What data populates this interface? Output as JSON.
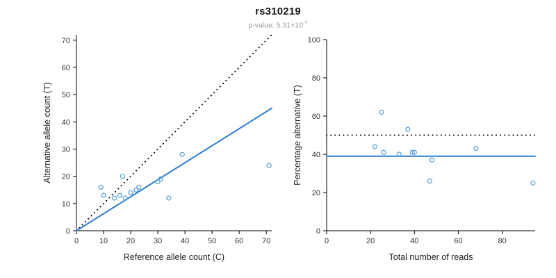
{
  "header": {
    "title": "rs310219",
    "pvalue_label": "p-value: 5.31×10",
    "pvalue_exponent": "-7"
  },
  "colors": {
    "accent_blue": "#2D7DD2",
    "point_blue": "#4F9BD5",
    "axis_black": "#000000",
    "subtitle_gray": "#9a9a9a"
  },
  "chart_data": [
    {
      "type": "scatter",
      "title": "",
      "xlabel": "Reference allele count (C)",
      "ylabel": "Alternative allele count (T)",
      "xlim": [
        0,
        72
      ],
      "ylim": [
        0,
        72
      ],
      "xticks": [
        0,
        10,
        20,
        30,
        40,
        50,
        60,
        70
      ],
      "yticks": [
        0,
        10,
        20,
        30,
        40,
        50,
        60,
        70
      ],
      "grid": false,
      "legend": "none",
      "point_color": "#4F9BD5",
      "points": [
        [
          9,
          16
        ],
        [
          10,
          13
        ],
        [
          14,
          12
        ],
        [
          16,
          13
        ],
        [
          17,
          20
        ],
        [
          18,
          12
        ],
        [
          20,
          14
        ],
        [
          22,
          15
        ],
        [
          23,
          16
        ],
        [
          30,
          18
        ],
        [
          31,
          19
        ],
        [
          34,
          12
        ],
        [
          39,
          28
        ],
        [
          71,
          24
        ]
      ],
      "lines": [
        {
          "name": "identity-line",
          "x1": 0,
          "y1": 0,
          "x2": 72,
          "y2": 72,
          "color": "#000000",
          "style": "dotted",
          "width": 2
        },
        {
          "name": "regression-line",
          "x1": 0,
          "y1": 0,
          "x2": 72,
          "y2": 45,
          "color": "#2D7DD2",
          "style": "solid",
          "width": 2
        }
      ]
    },
    {
      "type": "scatter",
      "title": "",
      "xlabel": "Total number of reads",
      "ylabel": "Percentage alternative (T)",
      "xlim": [
        0,
        95
      ],
      "ylim": [
        0,
        100
      ],
      "xticks": [
        0,
        20,
        40,
        60,
        80
      ],
      "yticks": [
        0,
        20,
        40,
        60,
        80,
        100
      ],
      "grid": false,
      "legend": "none",
      "point_color": "#4F9BD5",
      "points": [
        [
          22,
          44
        ],
        [
          25,
          62
        ],
        [
          26,
          41
        ],
        [
          33,
          40
        ],
        [
          37,
          53
        ],
        [
          39,
          41
        ],
        [
          40,
          41
        ],
        [
          47,
          26
        ],
        [
          48,
          37
        ],
        [
          68,
          43
        ],
        [
          94,
          25
        ]
      ],
      "lines": [
        {
          "name": "expected-50pct-line",
          "x1": 0,
          "y1": 50,
          "x2": 95,
          "y2": 50,
          "color": "#000000",
          "style": "dotted",
          "width": 2
        },
        {
          "name": "mean-percentage-line",
          "x1": 0,
          "y1": 39,
          "x2": 95,
          "y2": 39,
          "color": "#2D7DD2",
          "style": "solid",
          "width": 2
        }
      ]
    }
  ]
}
